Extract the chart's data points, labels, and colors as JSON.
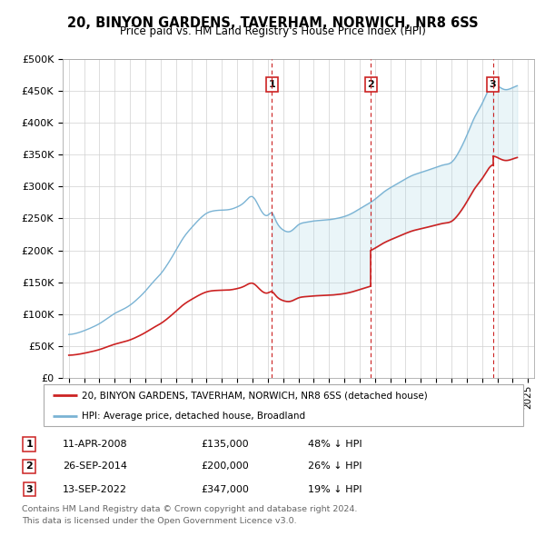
{
  "title": "20, BINYON GARDENS, TAVERHAM, NORWICH, NR8 6SS",
  "subtitle": "Price paid vs. HM Land Registry's House Price Index (HPI)",
  "ylim": [
    0,
    500000
  ],
  "yticks": [
    0,
    50000,
    100000,
    150000,
    200000,
    250000,
    300000,
    350000,
    400000,
    450000,
    500000
  ],
  "ytick_labels": [
    "£0",
    "£50K",
    "£100K",
    "£150K",
    "£200K",
    "£250K",
    "£300K",
    "£350K",
    "£400K",
    "£450K",
    "£500K"
  ],
  "transactions": [
    {
      "date": 2008.278,
      "price": 135000,
      "label": "1",
      "date_str": "11-APR-2008",
      "pct": "48%"
    },
    {
      "date": 2014.736,
      "price": 200000,
      "label": "2",
      "date_str": "26-SEP-2014",
      "pct": "26%"
    },
    {
      "date": 2022.703,
      "price": 347000,
      "label": "3",
      "date_str": "13-SEP-2022",
      "pct": "19%"
    }
  ],
  "legend_property": "20, BINYON GARDENS, TAVERHAM, NORWICH, NR8 6SS (detached house)",
  "legend_hpi": "HPI: Average price, detached house, Broadland",
  "footer1": "Contains HM Land Registry data © Crown copyright and database right 2024.",
  "footer2": "This data is licensed under the Open Government Licence v3.0.",
  "hpi_color": "#7ab3d4",
  "property_color": "#cc2222",
  "xlim_start": 1994.6,
  "xlim_end": 2025.4,
  "hpi_curve": {
    "x": [
      1995.0,
      1995.5,
      1996.0,
      1996.5,
      1997.0,
      1997.5,
      1998.0,
      1998.5,
      1999.0,
      1999.5,
      2000.0,
      2000.5,
      2001.0,
      2001.5,
      2002.0,
      2002.5,
      2003.0,
      2003.5,
      2004.0,
      2004.5,
      2005.0,
      2005.5,
      2006.0,
      2006.5,
      2007.0,
      2007.5,
      2008.0,
      2008.3,
      2008.5,
      2009.0,
      2009.5,
      2010.0,
      2010.5,
      2011.0,
      2011.5,
      2012.0,
      2012.5,
      2013.0,
      2013.5,
      2014.0,
      2014.5,
      2015.0,
      2015.5,
      2016.0,
      2016.5,
      2017.0,
      2017.5,
      2018.0,
      2018.5,
      2019.0,
      2019.5,
      2020.0,
      2020.5,
      2021.0,
      2021.5,
      2022.0,
      2022.5,
      2022.7,
      2023.0,
      2023.5,
      2024.0,
      2024.3
    ],
    "y": [
      68000,
      70000,
      74000,
      79000,
      85000,
      93000,
      101000,
      107000,
      114000,
      124000,
      136000,
      150000,
      163000,
      180000,
      200000,
      220000,
      235000,
      248000,
      258000,
      262000,
      263000,
      264000,
      268000,
      276000,
      284000,
      265000,
      255000,
      258000,
      248000,
      232000,
      230000,
      240000,
      244000,
      246000,
      247000,
      248000,
      250000,
      253000,
      258000,
      265000,
      272000,
      280000,
      290000,
      298000,
      305000,
      312000,
      318000,
      322000,
      326000,
      330000,
      334000,
      338000,
      355000,
      380000,
      408000,
      430000,
      455000,
      460000,
      458000,
      452000,
      455000,
      458000
    ]
  }
}
